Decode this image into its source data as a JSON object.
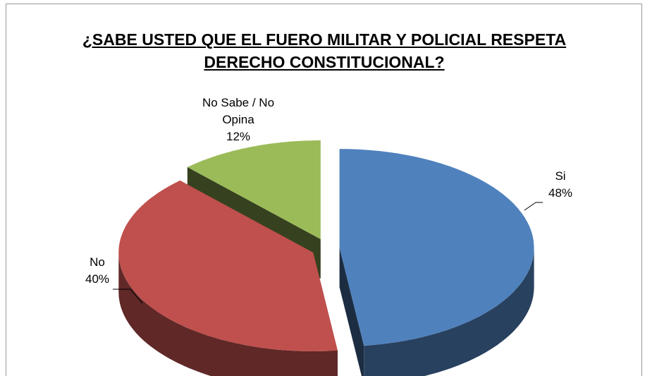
{
  "chart_data": {
    "type": "pie",
    "title": "¿SABE USTED QUE EL FUERO MILITAR Y POLICIAL RESPETA DERECHO CONSTITUCIONAL?",
    "categories": [
      "Si",
      "No",
      "No Sabe / No Opina"
    ],
    "values": [
      48,
      40,
      12
    ],
    "value_labels": [
      "48%",
      "40%",
      "12%"
    ],
    "colors": [
      "#4f81bd",
      "#c0504d",
      "#9bbb59"
    ],
    "three_d": true,
    "exploded": true
  }
}
